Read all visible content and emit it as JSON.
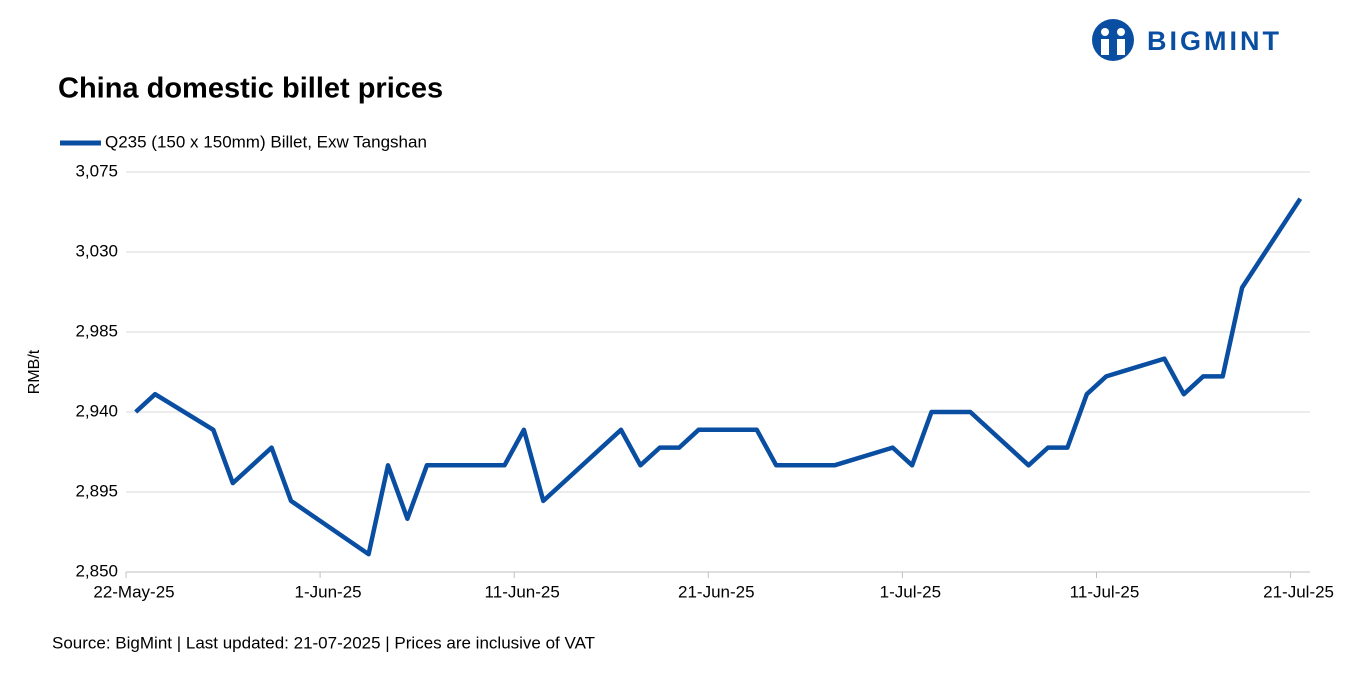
{
  "brand": "BIGMINT",
  "chart_data": {
    "type": "line",
    "title": "China domestic billet prices",
    "y_label": "RMB/t",
    "source": "Source: BigMint | Last updated: 21-07-2025 | Prices are inclusive of VAT",
    "legend": "top-left",
    "grid": true,
    "x": [
      "2025-05-22",
      "2025-05-23",
      "2025-05-26",
      "2025-05-27",
      "2025-05-29",
      "2025-05-30",
      "2025-06-03",
      "2025-06-04",
      "2025-06-05",
      "2025-06-06",
      "2025-06-10",
      "2025-06-11",
      "2025-06-12",
      "2025-06-16",
      "2025-06-17",
      "2025-06-18",
      "2025-06-19",
      "2025-06-20",
      "2025-06-23",
      "2025-06-24",
      "2025-06-27",
      "2025-06-30",
      "2025-07-01",
      "2025-07-02",
      "2025-07-04",
      "2025-07-07",
      "2025-07-08",
      "2025-07-09",
      "2025-07-10",
      "2025-07-11",
      "2025-07-14",
      "2025-07-15",
      "2025-07-16",
      "2025-07-17",
      "2025-07-18",
      "2025-07-21"
    ],
    "series": [
      {
        "name": "Q235 (150 x 150mm) Billet, Exw Tangshan",
        "color": "#0a4ea2",
        "values": [
          2940,
          2950,
          2930,
          2900,
          2920,
          2890,
          2860,
          2910,
          2880,
          2910,
          2910,
          2930,
          2890,
          2930,
          2910,
          2920,
          2920,
          2930,
          2930,
          2910,
          2910,
          2920,
          2910,
          2940,
          2940,
          2910,
          2920,
          2920,
          2950,
          2960,
          2970,
          2950,
          2960,
          2960,
          3010,
          3060
        ]
      }
    ],
    "xlim": [
      "2025-05-22",
      "2025-07-22"
    ],
    "xticks": [
      {
        "value": "2025-05-22",
        "label": "22-May-25"
      },
      {
        "value": "2025-06-01",
        "label": "1-Jun-25"
      },
      {
        "value": "2025-06-11",
        "label": "11-Jun-25"
      },
      {
        "value": "2025-06-21",
        "label": "21-Jun-25"
      },
      {
        "value": "2025-07-01",
        "label": "1-Jul-25"
      },
      {
        "value": "2025-07-11",
        "label": "11-Jul-25"
      },
      {
        "value": "2025-07-21",
        "label": "21-Jul-25"
      }
    ],
    "ylim": [
      2850,
      3075
    ],
    "yticks": [
      {
        "value": 2850,
        "label": "2,850"
      },
      {
        "value": 2895,
        "label": "2,895"
      },
      {
        "value": 2940,
        "label": "2,940"
      },
      {
        "value": 2985,
        "label": "2,985"
      },
      {
        "value": 3030,
        "label": "3,030"
      },
      {
        "value": 3075,
        "label": "3,075"
      }
    ]
  }
}
